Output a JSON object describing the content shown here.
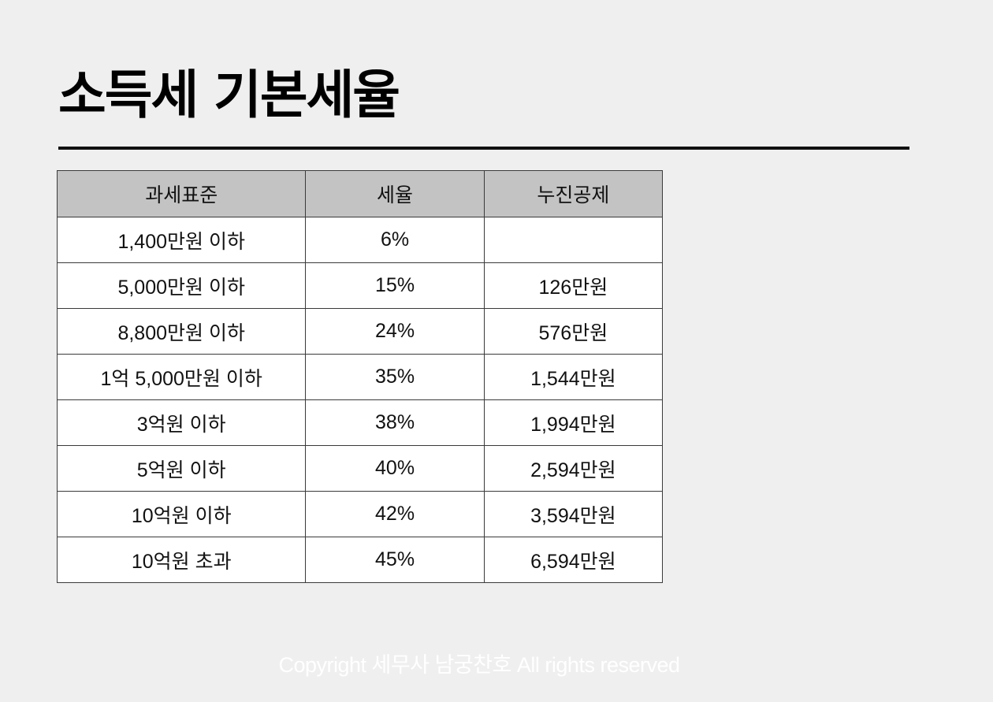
{
  "title": "소득세 기본세율",
  "table": {
    "headers": [
      "과세표준",
      "세율",
      "누진공제"
    ],
    "rows": [
      [
        "1,400만원 이하",
        "6%",
        ""
      ],
      [
        "5,000만원 이하",
        "15%",
        "126만원"
      ],
      [
        "8,800만원 이하",
        "24%",
        "576만원"
      ],
      [
        "1억 5,000만원 이하",
        "35%",
        "1,544만원"
      ],
      [
        "3억원 이하",
        "38%",
        "1,994만원"
      ],
      [
        "5억원 이하",
        "40%",
        "2,594만원"
      ],
      [
        "10억원 이하",
        "42%",
        "3,594만원"
      ],
      [
        "10억원 초과",
        "45%",
        "6,594만원"
      ]
    ]
  },
  "footer": {
    "copyright": "Copyright 세무사 남궁찬호 All rights reserved"
  },
  "colors": {
    "background": "#efefef",
    "header_fill": "#c3c3c3",
    "rule": "#111111",
    "footer_text": "#ffffff"
  }
}
